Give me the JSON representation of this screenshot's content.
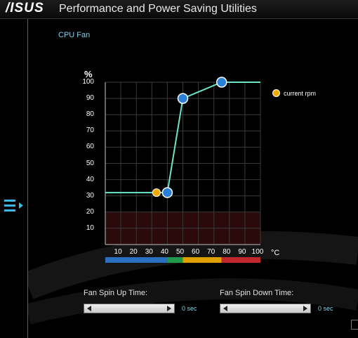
{
  "window": {
    "brand": "/ISUS",
    "title": "Performance and Power Saving Utilities"
  },
  "sidebar": {
    "icon": "menu-expand-icon"
  },
  "fan": {
    "title": "CPU Fan",
    "y_unit": "%",
    "x_unit": "°C",
    "legend": "current rpm",
    "spin_up_label": "Fan Spin Up Time:",
    "spin_up_value": "0 sec",
    "spin_down_label": "Fan Spin Down Time:",
    "spin_down_value": "0 sec"
  },
  "chart_data": {
    "type": "line",
    "xlim": [
      0,
      100
    ],
    "ylim": [
      0,
      100
    ],
    "x_ticks": [
      "10",
      "20",
      "30",
      "40",
      "50",
      "60",
      "70",
      "80",
      "90",
      "100"
    ],
    "y_ticks": [
      "10",
      "20",
      "30",
      "40",
      "50",
      "60",
      "70",
      "80",
      "90",
      "100"
    ],
    "series": [
      {
        "x": [
          0,
          40,
          50,
          75,
          100
        ],
        "y": [
          32,
          32,
          90,
          100,
          100
        ]
      }
    ],
    "control_points": [
      {
        "x": 40,
        "y": 32
      },
      {
        "x": 50,
        "y": 90
      },
      {
        "x": 75,
        "y": 100
      }
    ],
    "current_point": {
      "x": 33,
      "y": 32
    },
    "danger_zone_max_y": 20,
    "temperature_bands": [
      {
        "from": 0,
        "to": 40,
        "color": "#2a6fc0"
      },
      {
        "from": 40,
        "to": 50,
        "color": "#1e9a4a"
      },
      {
        "from": 50,
        "to": 75,
        "color": "#e0a000"
      },
      {
        "from": 75,
        "to": 100,
        "color": "#c0282c"
      }
    ],
    "colors": {
      "line": "#6de3c8",
      "point": "#2a7fd6",
      "current": "#f2a900",
      "grid": "#3a3a3a"
    }
  }
}
